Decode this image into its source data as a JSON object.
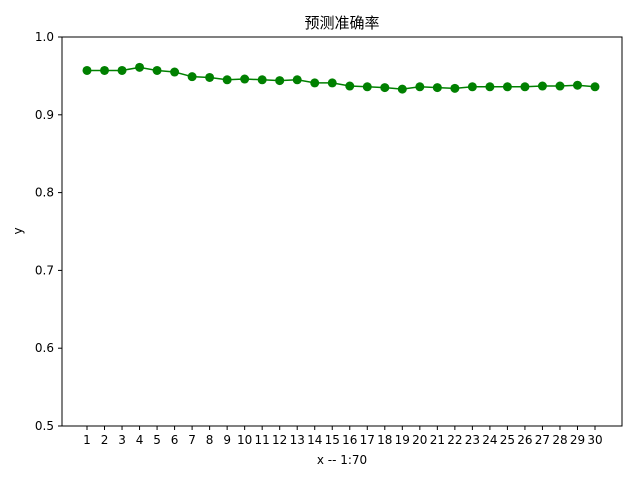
{
  "chart_data": {
    "type": "line",
    "title": "预测准确率",
    "xlabel": "x -- 1:70",
    "ylabel": "y",
    "ylim": [
      0.5,
      1.0
    ],
    "yticks": [
      0.5,
      0.6,
      0.7,
      0.8,
      0.9,
      1.0
    ],
    "ytick_labels": [
      "0.5",
      "0.6",
      "0.7",
      "0.8",
      "0.9",
      "1.0"
    ],
    "x": [
      1,
      2,
      3,
      4,
      5,
      6,
      7,
      8,
      9,
      10,
      11,
      12,
      13,
      14,
      15,
      16,
      17,
      18,
      19,
      20,
      21,
      22,
      23,
      24,
      25,
      26,
      27,
      28,
      29,
      30
    ],
    "xtick_labels": [
      "1",
      "2",
      "3",
      "4",
      "5",
      "6",
      "7",
      "8",
      "9",
      "10",
      "11",
      "12",
      "13",
      "14",
      "15",
      "16",
      "17",
      "18",
      "19",
      "20",
      "21",
      "22",
      "23",
      "24",
      "25",
      "26",
      "27",
      "28",
      "29",
      "30"
    ],
    "grid": false,
    "legend": "none",
    "series": [
      {
        "color": "#008000",
        "marker": "circle",
        "values": [
          0.957,
          0.957,
          0.957,
          0.961,
          0.957,
          0.955,
          0.949,
          0.948,
          0.945,
          0.946,
          0.945,
          0.944,
          0.945,
          0.941,
          0.941,
          0.937,
          0.936,
          0.935,
          0.933,
          0.936,
          0.935,
          0.934,
          0.936,
          0.936,
          0.936,
          0.936,
          0.937,
          0.937,
          0.938,
          0.936
        ]
      }
    ]
  }
}
